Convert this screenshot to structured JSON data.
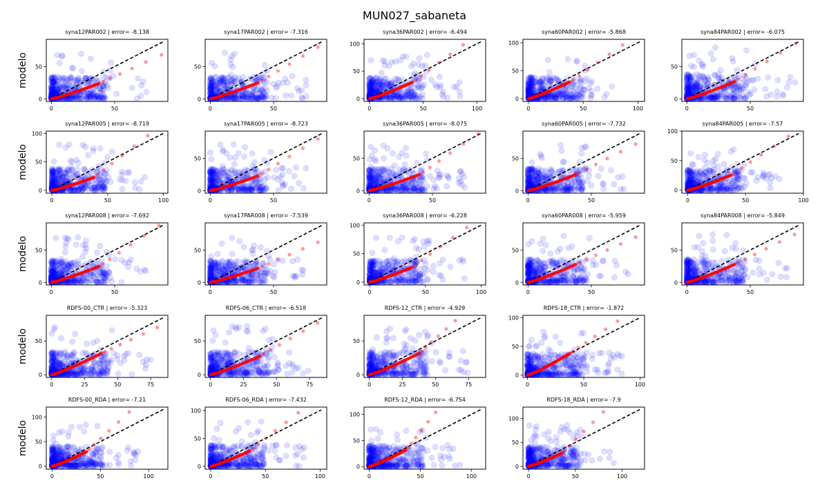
{
  "chart_data": {
    "type": "scatter",
    "title": "MUN027_sabaneta",
    "ylabel": "modelo",
    "colors": {
      "scatter": "#0000ff",
      "qq": "#ff0000",
      "identity": "#000000"
    },
    "panels": [
      {
        "title": "syna12PAR002 | error= -8.138",
        "row": 0,
        "col": 0,
        "xlim": [
          -4,
          92
        ],
        "ylim": [
          -4,
          92
        ],
        "xticks": [
          0,
          50
        ],
        "yticks": [
          0,
          50
        ],
        "line_max": 88,
        "qq_end": [
          87,
          68
        ],
        "qq_knee": [
          38,
          24
        ],
        "spread": 40
      },
      {
        "title": "syna17PAR002 | error= -7.316",
        "row": 0,
        "col": 1,
        "xlim": [
          -4,
          92
        ],
        "ylim": [
          -4,
          92
        ],
        "xticks": [
          0,
          50
        ],
        "yticks": [
          0,
          50
        ],
        "line_max": 88,
        "qq_end": [
          85,
          80
        ],
        "qq_knee": [
          38,
          25
        ],
        "spread": 40
      },
      {
        "title": "syna36PAR002 | error= -6.494",
        "row": 0,
        "col": 2,
        "xlim": [
          -5,
          108
        ],
        "ylim": [
          -5,
          108
        ],
        "xticks": [
          0,
          50,
          100
        ],
        "yticks": [
          0,
          50,
          100
        ],
        "line_max": 104,
        "qq_end": [
          87,
          98
        ],
        "qq_knee": [
          40,
          30
        ],
        "spread": 45
      },
      {
        "title": "syna60PAR002 | error= -5.868",
        "row": 0,
        "col": 3,
        "xlim": [
          -5,
          106
        ],
        "ylim": [
          -5,
          106
        ],
        "xticks": [
          0,
          50,
          100
        ],
        "yticks": [
          0,
          50,
          100
        ],
        "line_max": 102,
        "qq_end": [
          86,
          96
        ],
        "qq_knee": [
          38,
          30
        ],
        "spread": 45
      },
      {
        "title": "syna84PAR002 | error= -6.075",
        "row": 0,
        "col": 4,
        "xlim": [
          -4,
          92
        ],
        "ylim": [
          -4,
          92
        ],
        "xticks": [
          0,
          50
        ],
        "yticks": [
          0,
          50
        ],
        "line_max": 88,
        "qq_end": [
          86,
          86
        ],
        "qq_knee": [
          38,
          27
        ],
        "spread": 45
      },
      {
        "title": "syna12PAR005 | error= -8.719",
        "row": 1,
        "col": 0,
        "xlim": [
          -5,
          104
        ],
        "ylim": [
          -5,
          104
        ],
        "xticks": [
          0,
          50,
          100
        ],
        "yticks": [
          0,
          50,
          100
        ],
        "line_max": 100,
        "qq_end": [
          86,
          96
        ],
        "qq_knee": [
          38,
          23
        ],
        "spread": 45
      },
      {
        "title": "syna17PAR005 | error= -8.723",
        "row": 1,
        "col": 1,
        "xlim": [
          -4,
          92
        ],
        "ylim": [
          -4,
          92
        ],
        "xticks": [
          0,
          50
        ],
        "yticks": [
          0,
          50
        ],
        "line_max": 88,
        "qq_end": [
          85,
          80
        ],
        "qq_knee": [
          38,
          23
        ],
        "spread": 40
      },
      {
        "title": "syna36PAR005 | error= -8.075",
        "row": 1,
        "col": 2,
        "xlim": [
          -4,
          92
        ],
        "ylim": [
          -4,
          92
        ],
        "xticks": [
          0,
          50
        ],
        "yticks": [
          0,
          50
        ],
        "line_max": 88,
        "qq_end": [
          86,
          88
        ],
        "qq_knee": [
          40,
          25
        ],
        "spread": 40
      },
      {
        "title": "syna60PAR005 | error= -7.732",
        "row": 1,
        "col": 3,
        "xlim": [
          -4,
          92
        ],
        "ylim": [
          -4,
          92
        ],
        "xticks": [
          0,
          50
        ],
        "yticks": [
          0,
          50
        ],
        "line_max": 88,
        "qq_end": [
          85,
          72
        ],
        "qq_knee": [
          38,
          25
        ],
        "spread": 40
      },
      {
        "title": "syna84PAR005 | error= -7.57",
        "row": 1,
        "col": 4,
        "xlim": [
          -5,
          100
        ],
        "ylim": [
          -5,
          100
        ],
        "xticks": [
          0,
          50,
          100
        ],
        "yticks": [
          0,
          50,
          100
        ],
        "line_max": 96,
        "qq_end": [
          87,
          91
        ],
        "qq_knee": [
          38,
          26
        ],
        "spread": 42
      },
      {
        "title": "syna12PAR008 | error= -7.692",
        "row": 2,
        "col": 0,
        "xlim": [
          -4,
          92
        ],
        "ylim": [
          -4,
          92
        ],
        "xticks": [
          0,
          50
        ],
        "yticks": [
          0,
          50
        ],
        "line_max": 88,
        "qq_end": [
          85,
          88
        ],
        "qq_knee": [
          38,
          25
        ],
        "spread": 40
      },
      {
        "title": "syna17PAR008 | error= -7.539",
        "row": 2,
        "col": 1,
        "xlim": [
          -4,
          92
        ],
        "ylim": [
          -4,
          92
        ],
        "xticks": [
          0,
          50
        ],
        "yticks": [
          0,
          50
        ],
        "line_max": 88,
        "qq_end": [
          85,
          62
        ],
        "qq_knee": [
          38,
          22
        ],
        "spread": 40
      },
      {
        "title": "syna36PAR008 | error= -6.228",
        "row": 2,
        "col": 2,
        "xlim": [
          -5,
          104
        ],
        "ylim": [
          -5,
          104
        ],
        "xticks": [
          0,
          50,
          100
        ],
        "yticks": [
          0,
          50,
          100
        ],
        "line_max": 100,
        "qq_end": [
          87,
          96
        ],
        "qq_knee": [
          38,
          26
        ],
        "spread": 45
      },
      {
        "title": "syna60PAR008 | error= -5.959",
        "row": 2,
        "col": 3,
        "xlim": [
          -4,
          92
        ],
        "ylim": [
          -4,
          92
        ],
        "xticks": [
          0,
          50
        ],
        "yticks": [
          0,
          50
        ],
        "line_max": 88,
        "qq_end": [
          85,
          70
        ],
        "qq_knee": [
          38,
          28
        ],
        "spread": 42
      },
      {
        "title": "syna84PAR008 | error= -5.849",
        "row": 2,
        "col": 4,
        "xlim": [
          -4,
          92
        ],
        "ylim": [
          -4,
          92
        ],
        "xticks": [
          0,
          50
        ],
        "yticks": [
          0,
          50
        ],
        "line_max": 88,
        "qq_end": [
          85,
          74
        ],
        "qq_knee": [
          38,
          28
        ],
        "spread": 42
      },
      {
        "title": "RDFS-00_CTR | error= -5.323",
        "row": 3,
        "col": 0,
        "xlim": [
          -4,
          88
        ],
        "ylim": [
          -4,
          88
        ],
        "xticks": [
          0,
          25,
          50,
          75
        ],
        "yticks": [
          0,
          50
        ],
        "line_max": 85,
        "qq_end": [
          80,
          70
        ],
        "qq_knee": [
          38,
          32
        ],
        "spread": 40
      },
      {
        "title": "RDFS-06_CTR | error= -6.518",
        "row": 3,
        "col": 1,
        "xlim": [
          -4,
          88
        ],
        "ylim": [
          -4,
          88
        ],
        "xticks": [
          0,
          25,
          50,
          75
        ],
        "yticks": [
          0,
          50
        ],
        "line_max": 85,
        "qq_end": [
          81,
          77
        ],
        "qq_knee": [
          38,
          28
        ],
        "spread": 40
      },
      {
        "title": "RDFS-12_CTR | error= -4.929",
        "row": 3,
        "col": 2,
        "xlim": [
          -4,
          88
        ],
        "ylim": [
          -4,
          88
        ],
        "xticks": [
          0,
          25,
          50,
          75
        ],
        "yticks": [
          0,
          50
        ],
        "line_max": 84,
        "qq_end": [
          65,
          80
        ],
        "qq_knee": [
          38,
          32
        ],
        "spread": 40
      },
      {
        "title": "RDFS-18_CTR | error= -1.872",
        "row": 3,
        "col": 3,
        "xlim": [
          -4,
          104
        ],
        "ylim": [
          -4,
          104
        ],
        "xticks": [
          0,
          50,
          100
        ],
        "yticks": [
          0,
          50,
          100
        ],
        "line_max": 100,
        "qq_end": [
          80,
          94
        ],
        "qq_knee": [
          38,
          38
        ],
        "spread": 45
      },
      {
        "title": "RDFS-00_RDA | error= -7.21",
        "row": 4,
        "col": 0,
        "xlim": [
          -6,
          120
        ],
        "ylim": [
          -6,
          120
        ],
        "xticks": [
          0,
          50,
          100
        ],
        "yticks": [
          0,
          50,
          100
        ],
        "line_max": 116,
        "qq_end": [
          80,
          110
        ],
        "qq_knee": [
          36,
          30
        ],
        "spread": 48
      },
      {
        "title": "RDFS-06_RDA | error= -7.432",
        "row": 4,
        "col": 1,
        "xlim": [
          -5,
          106
        ],
        "ylim": [
          -5,
          106
        ],
        "xticks": [
          0,
          50,
          100
        ],
        "yticks": [
          0,
          50,
          100
        ],
        "line_max": 101,
        "qq_end": [
          80,
          96
        ],
        "qq_knee": [
          36,
          28
        ],
        "spread": 45
      },
      {
        "title": "RDFS-12_RDA | error= -6.754",
        "row": 4,
        "col": 2,
        "xlim": [
          -5,
          114
        ],
        "ylim": [
          -5,
          114
        ],
        "xticks": [
          0,
          50,
          100
        ],
        "yticks": [
          0,
          50,
          100
        ],
        "line_max": 110,
        "qq_end": [
          65,
          104
        ],
        "qq_knee": [
          36,
          32
        ],
        "spread": 48
      },
      {
        "title": "RDFS-18_RDA | error= -7.9",
        "row": 4,
        "col": 3,
        "xlim": [
          -6,
          124
        ],
        "ylim": [
          -6,
          124
        ],
        "xticks": [
          0,
          50,
          100
        ],
        "yticks": [
          0,
          50,
          100
        ],
        "line_max": 120,
        "qq_end": [
          80,
          114
        ],
        "qq_knee": [
          36,
          28
        ],
        "spread": 48
      }
    ]
  }
}
